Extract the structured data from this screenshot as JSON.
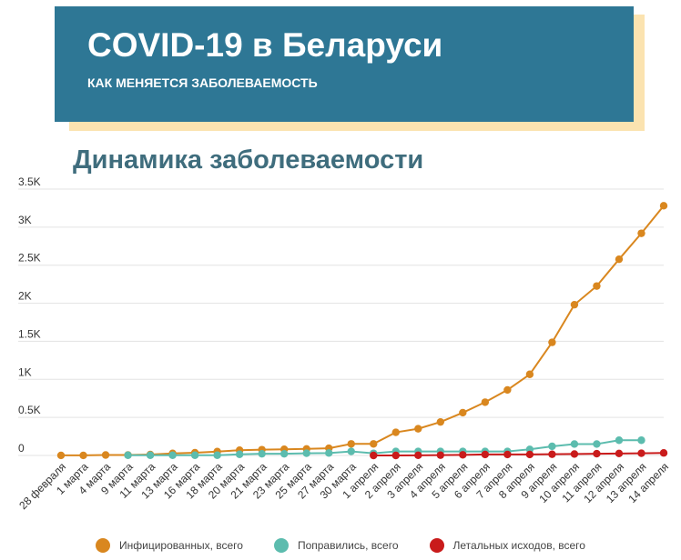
{
  "header": {
    "title": "COVID-19 в Беларуси",
    "subtitle": "КАК МЕНЯЕТСЯ ЗАБОЛЕВАЕМОСТЬ"
  },
  "chart_data": {
    "type": "line",
    "title": "Динамика заболеваемости",
    "xlabel": "",
    "ylabel": "",
    "ylim": [
      0,
      3500
    ],
    "y_ticks": [
      0,
      500,
      1000,
      1500,
      2000,
      2500,
      3000,
      3500
    ],
    "y_tick_labels": [
      "0",
      "0.5K",
      "1K",
      "1.5K",
      "2K",
      "2.5K",
      "3K",
      "3.5K"
    ],
    "grid": true,
    "legend_position": "bottom",
    "categories": [
      "28 февраля",
      "1 марта",
      "4 марта",
      "9 марта",
      "11 марта",
      "13 марта",
      "16 марта",
      "18 марта",
      "20 марта",
      "21 марта",
      "23 марта",
      "25 марта",
      "27 марта",
      "30 марта",
      "1 апреля",
      "2 апреля",
      "3 апреля",
      "4 апреля",
      "5 апреля",
      "6 апреля",
      "7 апреля",
      "8 апреля",
      "9 апреля",
      "10 апреля",
      "11 апреля",
      "12 апреля",
      "13 апреля",
      "14 апреля"
    ],
    "series": [
      {
        "name": "Инфицированных, всего",
        "color": "#d9871f",
        "values": [
          1,
          1,
          6,
          6,
          12,
          27,
          36,
          51,
          69,
          76,
          81,
          86,
          94,
          152,
          152,
          304,
          351,
          440,
          562,
          700,
          861,
          1066,
          1486,
          1981,
          2226,
          2578,
          2919,
          3281
        ]
      },
      {
        "name": "Поправились, всего",
        "color": "#5cbcae",
        "values": [
          null,
          null,
          null,
          3,
          3,
          3,
          3,
          3,
          15,
          22,
          22,
          29,
          32,
          53,
          28,
          53,
          53,
          53,
          53,
          53,
          53,
          80,
          120,
          150,
          150,
          200,
          200,
          null
        ]
      },
      {
        "name": "Летальных исходов, всего",
        "color": "#c91b1b",
        "values": [
          null,
          null,
          null,
          null,
          null,
          null,
          null,
          null,
          null,
          null,
          null,
          null,
          null,
          null,
          0,
          0,
          2,
          4,
          8,
          13,
          13,
          13,
          16,
          19,
          23,
          26,
          29,
          33
        ]
      }
    ]
  }
}
